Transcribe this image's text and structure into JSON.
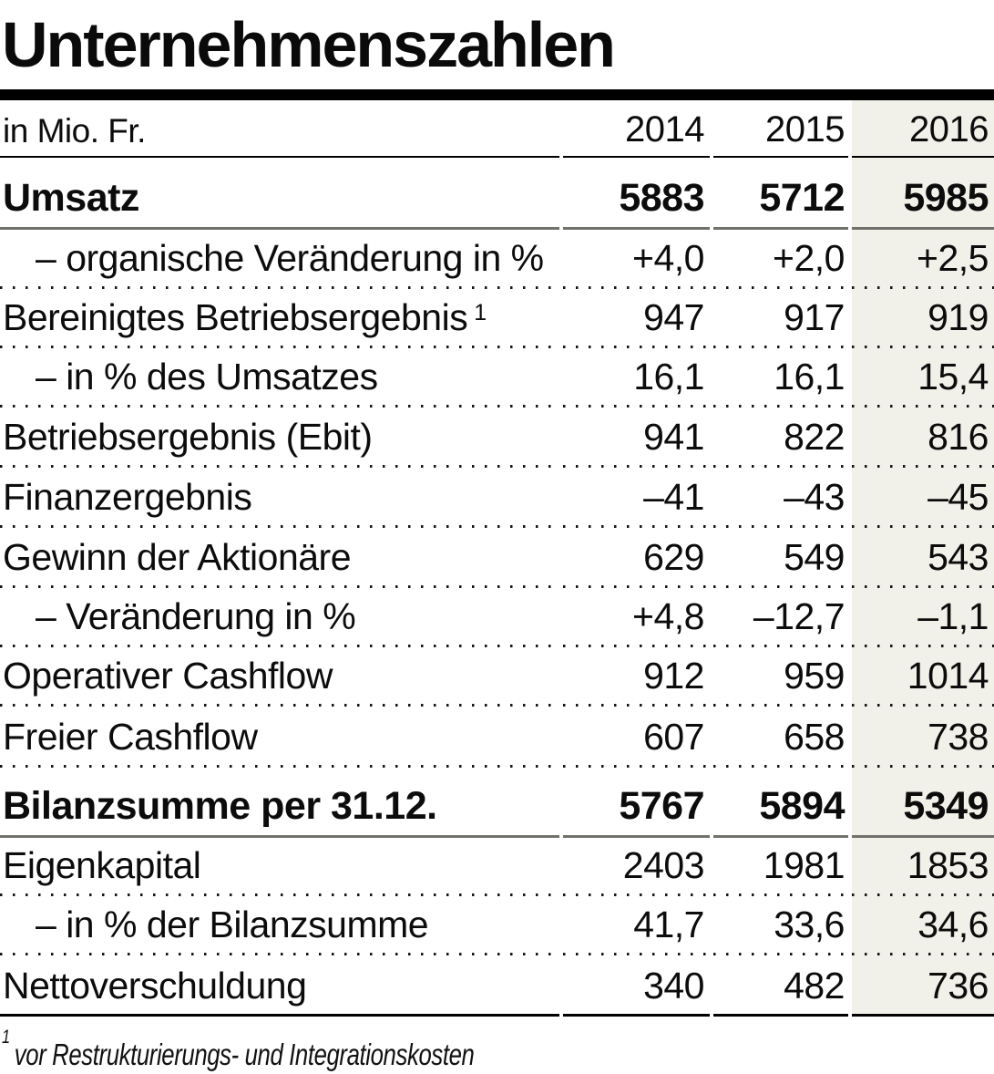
{
  "title": "Unternehmenszahlen",
  "table": {
    "unit_label": "in Mio. Fr.",
    "years": [
      "2014",
      "2015",
      "2016"
    ],
    "highlighted_year": "2016",
    "rows": [
      {
        "label": "Umsatz",
        "values": [
          "5883",
          "5712",
          "5985"
        ],
        "style": "bold",
        "sep": "solid"
      },
      {
        "label": "– organische Veränderung in %",
        "values": [
          "+4,0",
          "+2,0",
          "+2,5"
        ],
        "style": "sub",
        "sep": "dotted"
      },
      {
        "label": "Bereinigtes Betriebsergebnis",
        "footnote_marker": "1",
        "values": [
          "947",
          "917",
          "919"
        ],
        "style": "normal",
        "sep": "dotted"
      },
      {
        "label": "– in % des Umsatzes",
        "values": [
          "16,1",
          "16,1",
          "15,4"
        ],
        "style": "sub",
        "sep": "dotted"
      },
      {
        "label": "Betriebsergebnis (Ebit)",
        "values": [
          "941",
          "822",
          "816"
        ],
        "style": "normal",
        "sep": "dotted"
      },
      {
        "label": "Finanzergebnis",
        "values": [
          "–41",
          "–43",
          "–45"
        ],
        "style": "normal",
        "sep": "dotted"
      },
      {
        "label": "Gewinn der Aktionäre",
        "values": [
          "629",
          "549",
          "543"
        ],
        "style": "normal",
        "sep": "dotted"
      },
      {
        "label": "– Veränderung in %",
        "values": [
          "+4,8",
          "–12,7",
          "–1,1"
        ],
        "style": "sub",
        "sep": "dotted"
      },
      {
        "label": "Operativer Cashflow",
        "values": [
          "912",
          "959",
          "1014"
        ],
        "style": "normal",
        "sep": "dotted"
      },
      {
        "label": "Freier Cashflow",
        "values": [
          "607",
          "658",
          "738"
        ],
        "style": "normal",
        "sep": "dotted"
      },
      {
        "label": "Bilanzsumme per 31.12.",
        "values": [
          "5767",
          "5894",
          "5349"
        ],
        "style": "bold",
        "sep": "solid"
      },
      {
        "label": "Eigenkapital",
        "values": [
          "2403",
          "1981",
          "1853"
        ],
        "style": "normal",
        "sep": "dotted"
      },
      {
        "label": "– in % der Bilanzsumme",
        "values": [
          "41,7",
          "33,6",
          "34,6"
        ],
        "style": "sub",
        "sep": "dotted"
      },
      {
        "label": "Nettoverschuldung",
        "values": [
          "340",
          "482",
          "736"
        ],
        "style": "normal",
        "sep": "bottom"
      }
    ]
  },
  "footnote": {
    "marker": "1",
    "text": "vor Restrukturierungs- und Integrationskosten"
  },
  "colors": {
    "highlight_column_bg": "#f1f0e9",
    "heavy_rule": "#000000",
    "section_rule": "#70706c",
    "text": "#0c0c0c"
  },
  "chart_data": {
    "type": "table",
    "title": "Unternehmenszahlen",
    "unit": "in Mio. Fr.",
    "columns": [
      "2014",
      "2015",
      "2016"
    ],
    "rows": [
      {
        "label": "Umsatz",
        "values": [
          5883,
          5712,
          5985
        ]
      },
      {
        "label": "organische Veränderung in %",
        "values": [
          4.0,
          2.0,
          2.5
        ]
      },
      {
        "label": "Bereinigtes Betriebsergebnis (vor Restrukturierungs- und Integrationskosten)",
        "values": [
          947,
          917,
          919
        ]
      },
      {
        "label": "in % des Umsatzes",
        "values": [
          16.1,
          16.1,
          15.4
        ]
      },
      {
        "label": "Betriebsergebnis (Ebit)",
        "values": [
          941,
          822,
          816
        ]
      },
      {
        "label": "Finanzergebnis",
        "values": [
          -41,
          -43,
          -45
        ]
      },
      {
        "label": "Gewinn der Aktionäre",
        "values": [
          629,
          549,
          543
        ]
      },
      {
        "label": "Veränderung in %",
        "values": [
          4.8,
          -12.7,
          -1.1
        ]
      },
      {
        "label": "Operativer Cashflow",
        "values": [
          912,
          959,
          1014
        ]
      },
      {
        "label": "Freier Cashflow",
        "values": [
          607,
          658,
          738
        ]
      },
      {
        "label": "Bilanzsumme per 31.12.",
        "values": [
          5767,
          5894,
          5349
        ]
      },
      {
        "label": "Eigenkapital",
        "values": [
          2403,
          1981,
          1853
        ]
      },
      {
        "label": "in % der Bilanzsumme",
        "values": [
          41.7,
          33.6,
          34.6
        ]
      },
      {
        "label": "Nettoverschuldung",
        "values": [
          340,
          482,
          736
        ]
      }
    ]
  }
}
